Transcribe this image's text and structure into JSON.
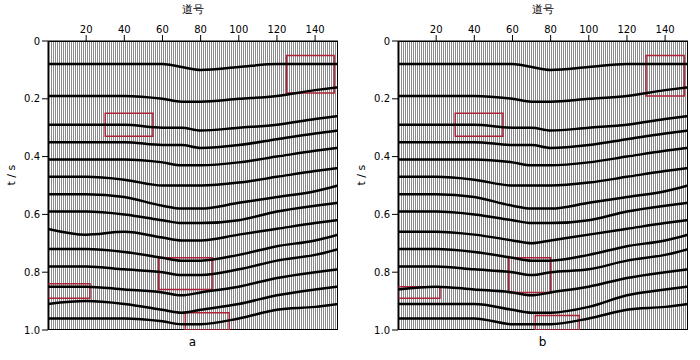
{
  "chart_data": [
    {
      "type": "line",
      "title": "a",
      "x_label": "道号",
      "y_label": "t / s",
      "color": "#000000",
      "x": [
        0,
        20,
        40,
        60,
        70,
        80,
        100,
        120,
        140,
        152
      ],
      "xlim": [
        0,
        152
      ],
      "xticks": [
        20,
        40,
        60,
        80,
        100,
        120,
        140
      ],
      "ylim": [
        0,
        1
      ],
      "yticks": [
        0,
        0.2,
        0.4,
        0.6,
        0.8,
        {
          "value": 1,
          "label": "1.0"
        }
      ],
      "series": [
        {
          "values": [
            0.08,
            0.08,
            0.08,
            0.08,
            0.09,
            0.1,
            0.09,
            0.08,
            0.08,
            0.08
          ]
        },
        {
          "values": [
            0.19,
            0.19,
            0.19,
            0.2,
            0.21,
            0.21,
            0.2,
            0.19,
            0.17,
            0.16
          ]
        },
        {
          "values": [
            0.29,
            0.29,
            0.29,
            0.3,
            0.3,
            0.31,
            0.3,
            0.29,
            0.27,
            0.26
          ]
        },
        {
          "values": [
            0.35,
            0.35,
            0.35,
            0.36,
            0.36,
            0.37,
            0.36,
            0.34,
            0.32,
            0.31
          ]
        },
        {
          "values": [
            0.41,
            0.41,
            0.41,
            0.42,
            0.43,
            0.43,
            0.42,
            0.4,
            0.38,
            0.37
          ]
        },
        {
          "values": [
            0.47,
            0.47,
            0.48,
            0.5,
            0.5,
            0.5,
            0.49,
            0.47,
            0.45,
            0.44
          ]
        },
        {
          "values": [
            0.53,
            0.53,
            0.54,
            0.57,
            0.58,
            0.58,
            0.56,
            0.54,
            0.52,
            0.5
          ]
        },
        {
          "values": [
            0.59,
            0.59,
            0.6,
            0.62,
            0.63,
            0.63,
            0.62,
            0.59,
            0.57,
            0.56
          ]
        },
        {
          "values": [
            0.65,
            0.67,
            0.66,
            0.68,
            0.69,
            0.69,
            0.67,
            0.65,
            0.63,
            0.62
          ]
        },
        {
          "values": [
            0.72,
            0.72,
            0.73,
            0.75,
            0.76,
            0.76,
            0.74,
            0.71,
            0.69,
            0.67
          ]
        },
        {
          "values": [
            0.78,
            0.78,
            0.79,
            0.8,
            0.81,
            0.81,
            0.79,
            0.76,
            0.74,
            0.72
          ]
        },
        {
          "values": [
            0.85,
            0.85,
            0.86,
            0.87,
            0.88,
            0.87,
            0.85,
            0.82,
            0.8,
            0.79
          ]
        },
        {
          "values": [
            0.91,
            0.9,
            0.91,
            0.93,
            0.94,
            0.93,
            0.91,
            0.88,
            0.86,
            0.85
          ]
        },
        {
          "values": [
            0.96,
            0.96,
            0.96,
            0.97,
            0.98,
            0.98,
            0.96,
            0.93,
            0.92,
            0.91
          ]
        }
      ],
      "boxes": {
        "color": "#b0243a",
        "items": [
          {
            "x": [
              125,
              150
            ],
            "y": [
              0.05,
              0.18
            ]
          },
          {
            "x": [
              30,
              55
            ],
            "y": [
              0.25,
              0.33
            ]
          },
          {
            "x": [
              0,
              22
            ],
            "y": [
              0.84,
              0.89
            ]
          },
          {
            "x": [
              58,
              86
            ],
            "y": [
              0.75,
              0.86
            ]
          },
          {
            "x": [
              72,
              95
            ],
            "y": [
              0.94,
              1
            ]
          }
        ]
      }
    },
    {
      "type": "line",
      "title": "b",
      "x_label": "道号",
      "y_label": "t / s",
      "color": "#000000",
      "x": [
        0,
        20,
        40,
        60,
        70,
        80,
        100,
        120,
        140,
        152
      ],
      "xlim": [
        0,
        152
      ],
      "xticks": [
        20,
        40,
        60,
        80,
        100,
        120,
        140
      ],
      "ylim": [
        0,
        1
      ],
      "yticks": [
        0,
        0.2,
        0.4,
        0.6,
        0.8,
        {
          "value": 1,
          "label": "1.0"
        }
      ],
      "series": [
        {
          "values": [
            0.08,
            0.08,
            0.08,
            0.08,
            0.09,
            0.1,
            0.09,
            0.08,
            0.08,
            0.08
          ]
        },
        {
          "values": [
            0.19,
            0.19,
            0.19,
            0.2,
            0.21,
            0.21,
            0.2,
            0.19,
            0.17,
            0.16
          ]
        },
        {
          "values": [
            0.29,
            0.29,
            0.29,
            0.3,
            0.3,
            0.31,
            0.3,
            0.29,
            0.27,
            0.26
          ]
        },
        {
          "values": [
            0.35,
            0.35,
            0.35,
            0.36,
            0.36,
            0.37,
            0.36,
            0.34,
            0.32,
            0.31
          ]
        },
        {
          "values": [
            0.41,
            0.41,
            0.41,
            0.42,
            0.43,
            0.43,
            0.42,
            0.4,
            0.38,
            0.37
          ]
        },
        {
          "values": [
            0.47,
            0.47,
            0.48,
            0.5,
            0.5,
            0.5,
            0.49,
            0.47,
            0.45,
            0.44
          ]
        },
        {
          "values": [
            0.53,
            0.53,
            0.54,
            0.57,
            0.58,
            0.58,
            0.56,
            0.54,
            0.52,
            0.5
          ]
        },
        {
          "values": [
            0.59,
            0.59,
            0.6,
            0.62,
            0.63,
            0.63,
            0.62,
            0.59,
            0.57,
            0.56
          ]
        },
        {
          "values": [
            0.66,
            0.66,
            0.67,
            0.69,
            0.7,
            0.69,
            0.67,
            0.65,
            0.63,
            0.62
          ]
        },
        {
          "values": [
            0.72,
            0.72,
            0.73,
            0.75,
            0.76,
            0.76,
            0.74,
            0.71,
            0.69,
            0.67
          ]
        },
        {
          "values": [
            0.78,
            0.78,
            0.79,
            0.8,
            0.81,
            0.8,
            0.79,
            0.76,
            0.74,
            0.72
          ]
        },
        {
          "values": [
            0.86,
            0.85,
            0.86,
            0.87,
            0.88,
            0.87,
            0.85,
            0.82,
            0.8,
            0.79
          ]
        },
        {
          "values": [
            0.91,
            0.91,
            0.91,
            0.93,
            0.94,
            0.94,
            0.92,
            0.88,
            0.86,
            0.85
          ]
        },
        {
          "values": [
            0.96,
            0.96,
            0.96,
            0.98,
            0.98,
            0.98,
            0.96,
            0.93,
            0.92,
            0.91
          ]
        }
      ],
      "boxes": {
        "color": "#b0243a",
        "items": [
          {
            "x": [
              130,
              150
            ],
            "y": [
              0.05,
              0.19
            ]
          },
          {
            "x": [
              30,
              55
            ],
            "y": [
              0.25,
              0.33
            ]
          },
          {
            "x": [
              0,
              22
            ],
            "y": [
              0.85,
              0.89
            ]
          },
          {
            "x": [
              58,
              80
            ],
            "y": [
              0.75,
              0.87
            ]
          },
          {
            "x": [
              72,
              95
            ],
            "y": [
              0.95,
              1
            ]
          }
        ]
      }
    }
  ]
}
